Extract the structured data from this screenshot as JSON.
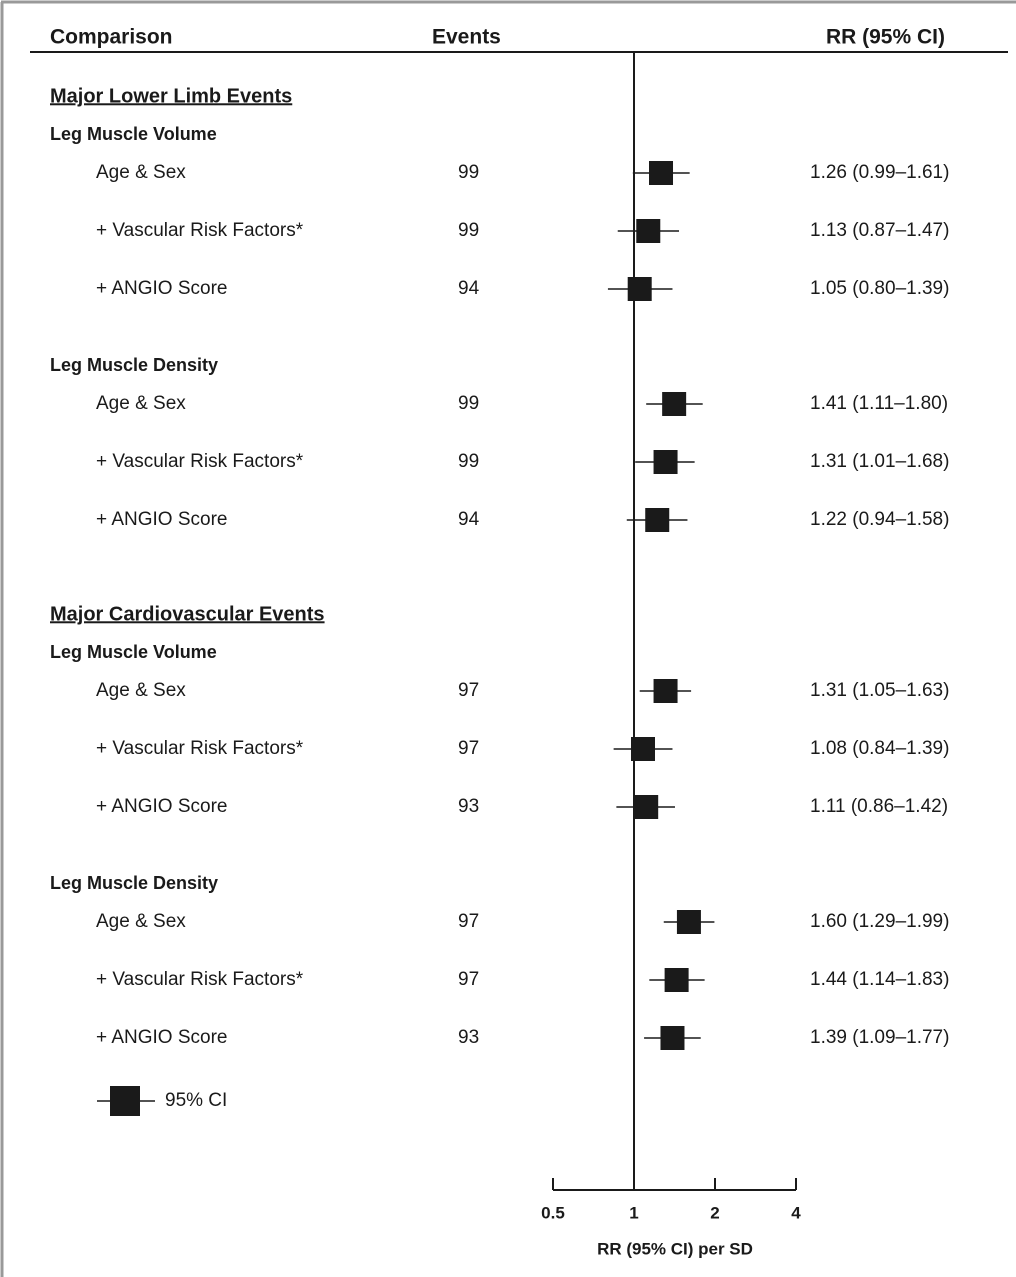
{
  "chart_data": {
    "type": "forest",
    "column_headers": [
      "Comparison",
      "Events",
      "RR (95% CI)"
    ],
    "x_label": "RR (95% CI) per SD",
    "xlim": [
      0.5,
      4
    ],
    "xticks": [
      0.5,
      1,
      2,
      4
    ],
    "log_x": true,
    "reference": 1,
    "color": "#1a1a1a",
    "legend_label": "95% CI",
    "sections": [
      {
        "title": "Major Lower Limb Events",
        "groups": [
          {
            "title": "Leg Muscle Volume",
            "categories": [
              "Age & Sex",
              "+ Vascular Risk Factors*",
              "+ ANGIO Score"
            ],
            "events": [
              99,
              99,
              94
            ],
            "values": [
              1.26,
              1.13,
              1.05
            ],
            "lower": [
              0.99,
              0.87,
              0.8
            ],
            "upper": [
              1.61,
              1.47,
              1.39
            ],
            "value_labels": [
              "1.26 (0.99–1.61)",
              "1.13 (0.87–1.47)",
              "1.05 (0.80–1.39)"
            ]
          },
          {
            "title": "Leg Muscle Density",
            "categories": [
              "Age & Sex",
              "+ Vascular Risk Factors*",
              "+ ANGIO Score"
            ],
            "events": [
              99,
              99,
              94
            ],
            "values": [
              1.41,
              1.31,
              1.22
            ],
            "lower": [
              1.11,
              1.01,
              0.94
            ],
            "upper": [
              1.8,
              1.68,
              1.58
            ],
            "value_labels": [
              "1.41 (1.11–1.80)",
              "1.31 (1.01–1.68)",
              "1.22 (0.94–1.58)"
            ]
          }
        ]
      },
      {
        "title": "Major Cardiovascular Events",
        "groups": [
          {
            "title": "Leg Muscle Volume",
            "categories": [
              "Age & Sex",
              "+ Vascular Risk Factors*",
              "+ ANGIO Score"
            ],
            "events": [
              97,
              97,
              93
            ],
            "values": [
              1.31,
              1.08,
              1.11
            ],
            "lower": [
              1.05,
              0.84,
              0.86
            ],
            "upper": [
              1.63,
              1.39,
              1.42
            ],
            "value_labels": [
              "1.31 (1.05–1.63)",
              "1.08 (0.84–1.39)",
              "1.11 (0.86–1.42)"
            ]
          },
          {
            "title": "Leg Muscle Density",
            "categories": [
              "Age & Sex",
              "+ Vascular Risk Factors*",
              "+ ANGIO Score"
            ],
            "events": [
              97,
              97,
              93
            ],
            "values": [
              1.6,
              1.44,
              1.39
            ],
            "lower": [
              1.29,
              1.14,
              1.09
            ],
            "upper": [
              1.99,
              1.83,
              1.77
            ],
            "value_labels": [
              "1.60 (1.29–1.99)",
              "1.44 (1.14–1.83)",
              "1.39 (1.09–1.77)"
            ]
          }
        ]
      }
    ]
  }
}
